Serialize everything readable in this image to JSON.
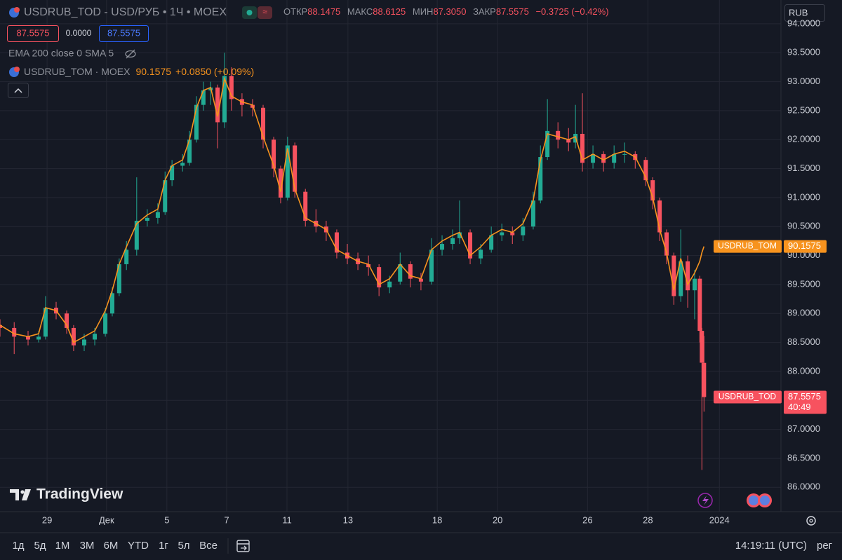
{
  "header": {
    "symbol": "USDRUB_TOD - USD/РУБ • 1Ч • MOEX",
    "open_label": "ОТКР",
    "open": "88.1475",
    "high_label": "МАКС",
    "high": "88.6125",
    "low_label": "МИН",
    "low": "87.3050",
    "close_label": "ЗАКР",
    "close": "87.5575",
    "change": "−0.3725 (−0.42%)",
    "bid": "87.5575",
    "spread": "0.0000",
    "ask": "87.5575",
    "indicators": "EMA 200 close 0 SMA 5",
    "compare_symbol": "USDRUB_TOM · MOEX",
    "compare_price": "90.1575",
    "compare_change": "+0.0850 (+0.09%)",
    "currency": "RUB",
    "countdown": "40:49",
    "logo": "TradingView"
  },
  "chart_data": {
    "type": "candlestick",
    "x": [
      0,
      0.47,
      0.93,
      1.28,
      1.51,
      1.86,
      2.21,
      2.44,
      2.79,
      3.14,
      3.49,
      3.72,
      3.95,
      4.19,
      4.53,
      4.88,
      5.23,
      5.47,
      5.7,
      6.05,
      6.28,
      6.51,
      6.74,
      6.98,
      7.21,
      7.44,
      7.67,
      8.02,
      8.37,
      8.72,
      9.07,
      9.3,
      9.53,
      9.77,
      10.12,
      10.47,
      10.81,
      11.16,
      11.51,
      11.86,
      12.21,
      12.56,
      12.91,
      13.26,
      13.6,
      13.95,
      14.3,
      14.65,
      15.0,
      15.23,
      15.58,
      15.93,
      16.28,
      16.63,
      16.98,
      17.33,
      17.67,
      17.91,
      18.14,
      18.49,
      18.84,
      19.07,
      19.3,
      19.65,
      20.0,
      20.35,
      20.7,
      21.05,
      21.4,
      21.63,
      21.86,
      22.09,
      22.33,
      22.56,
      22.79,
      23.02,
      23.19,
      23.26,
      23.33
    ],
    "series": [
      {
        "name": "USDRUB_TOD",
        "up_color": "#22ab94",
        "down_color": "#f7525f",
        "open": [
          88.8,
          88.75,
          88.6,
          88.55,
          88.6,
          89.1,
          89.0,
          88.75,
          88.45,
          88.55,
          88.65,
          89.0,
          89.35,
          89.85,
          90.1,
          90.6,
          90.65,
          90.75,
          91.3,
          91.55,
          91.6,
          92.0,
          92.6,
          92.85,
          92.9,
          92.3,
          93.1,
          92.7,
          92.6,
          92.55,
          92.0,
          91.5,
          91.0,
          91.9,
          91.1,
          90.6,
          90.5,
          90.4,
          90.05,
          89.95,
          89.85,
          89.8,
          89.45,
          89.55,
          89.85,
          89.6,
          89.55,
          90.1,
          90.2,
          90.3,
          90.4,
          89.95,
          90.1,
          90.35,
          90.4,
          90.35,
          90.5,
          90.95,
          91.7,
          92.15,
          92.0,
          91.95,
          92.1,
          91.6,
          91.75,
          91.6,
          91.75,
          91.75,
          91.65,
          91.3,
          90.95,
          90.4,
          90.0,
          89.3,
          89.9,
          89.4,
          89.6,
          88.7,
          88.1475
        ],
        "high": [
          88.9,
          88.85,
          88.7,
          88.7,
          89.3,
          89.2,
          89.05,
          88.8,
          88.65,
          88.75,
          89.1,
          89.45,
          89.95,
          90.25,
          91.35,
          90.8,
          90.9,
          91.45,
          91.65,
          91.75,
          92.15,
          92.75,
          93.0,
          93.0,
          92.95,
          93.5,
          93.25,
          92.8,
          92.7,
          92.6,
          92.05,
          91.55,
          92.05,
          91.95,
          91.15,
          90.8,
          90.6,
          90.45,
          90.2,
          90.05,
          90.0,
          89.85,
          89.65,
          90.05,
          89.9,
          89.7,
          90.3,
          90.35,
          90.45,
          90.95,
          90.45,
          90.2,
          90.5,
          90.55,
          90.5,
          90.65,
          91.1,
          91.9,
          92.7,
          92.3,
          92.2,
          92.6,
          92.8,
          91.9,
          91.8,
          91.9,
          91.95,
          91.8,
          91.7,
          91.35,
          91.0,
          90.45,
          90.05,
          90.45,
          90.0,
          89.75,
          89.65,
          88.75,
          88.6125
        ],
        "low": [
          88.6,
          88.3,
          88.45,
          88.5,
          88.55,
          88.9,
          88.65,
          88.35,
          88.35,
          88.45,
          88.6,
          88.95,
          89.3,
          89.75,
          90.0,
          90.5,
          90.55,
          90.7,
          91.2,
          91.45,
          91.55,
          91.95,
          92.5,
          92.6,
          91.85,
          92.2,
          92.5,
          92.4,
          92.4,
          91.85,
          91.35,
          90.9,
          90.95,
          91.0,
          90.5,
          90.4,
          90.25,
          89.95,
          89.85,
          89.75,
          89.65,
          89.3,
          89.35,
          89.5,
          89.45,
          89.4,
          89.5,
          90.0,
          90.1,
          90.2,
          89.85,
          89.85,
          90.05,
          90.25,
          90.2,
          90.25,
          90.45,
          90.9,
          91.65,
          91.85,
          91.8,
          91.85,
          91.45,
          91.5,
          91.45,
          91.5,
          91.6,
          91.5,
          91.2,
          90.8,
          90.25,
          89.85,
          89.15,
          89.2,
          89.1,
          88.9,
          88.5,
          86.3,
          87.305
        ],
        "close": [
          88.75,
          88.6,
          88.55,
          88.6,
          89.1,
          89.0,
          88.75,
          88.45,
          88.55,
          88.65,
          89.0,
          89.35,
          89.85,
          90.1,
          90.6,
          90.65,
          90.75,
          91.3,
          91.55,
          91.6,
          92.0,
          92.6,
          92.85,
          92.9,
          92.3,
          93.1,
          92.7,
          92.6,
          92.55,
          92.0,
          91.5,
          91.0,
          91.9,
          91.1,
          90.6,
          90.5,
          90.4,
          90.05,
          89.95,
          89.85,
          89.8,
          89.45,
          89.55,
          89.85,
          89.6,
          89.55,
          90.1,
          90.2,
          90.3,
          90.4,
          89.95,
          90.1,
          90.35,
          90.4,
          90.35,
          90.5,
          90.95,
          91.7,
          92.15,
          92.0,
          91.95,
          92.1,
          91.6,
          91.75,
          91.6,
          91.75,
          91.75,
          91.65,
          91.3,
          90.95,
          90.4,
          90.0,
          89.3,
          89.9,
          89.4,
          89.6,
          88.7,
          88.15,
          87.5575
        ],
        "label_color": "#f7525f"
      },
      {
        "name": "USDRUB_TOM",
        "type": "line",
        "color": "#f7931e",
        "values": [
          88.8,
          88.65,
          88.6,
          88.65,
          89.1,
          89.05,
          88.8,
          88.5,
          88.6,
          88.7,
          89.05,
          89.4,
          89.85,
          90.15,
          90.55,
          90.7,
          90.8,
          91.3,
          91.55,
          91.65,
          92.0,
          92.55,
          92.85,
          92.9,
          92.4,
          93.05,
          92.75,
          92.65,
          92.6,
          92.05,
          91.55,
          91.1,
          91.85,
          91.15,
          90.65,
          90.55,
          90.45,
          90.1,
          90.0,
          89.9,
          89.85,
          89.5,
          89.6,
          89.85,
          89.65,
          89.6,
          90.1,
          90.25,
          90.35,
          90.4,
          90.0,
          90.15,
          90.35,
          90.45,
          90.4,
          90.55,
          90.95,
          91.65,
          92.1,
          92.05,
          92.0,
          92.05,
          91.65,
          91.75,
          91.65,
          91.75,
          91.8,
          91.7,
          91.35,
          91.0,
          90.45,
          90.05,
          89.4,
          89.95,
          89.5,
          89.7,
          89.9,
          90.05,
          90.1575
        ]
      }
    ],
    "xlim": [
      0,
      25.88
    ],
    "xticks": [
      {
        "value": 1.56,
        "label": "29"
      },
      {
        "value": 3.53,
        "label": "Дек"
      },
      {
        "value": 5.53,
        "label": "5"
      },
      {
        "value": 7.51,
        "label": "7"
      },
      {
        "value": 9.51,
        "label": "11"
      },
      {
        "value": 11.53,
        "label": "13"
      },
      {
        "value": 14.49,
        "label": "18"
      },
      {
        "value": 16.49,
        "label": "20"
      },
      {
        "value": 19.47,
        "label": "26"
      },
      {
        "value": 21.47,
        "label": "28"
      },
      {
        "value": 23.84,
        "label": "2024"
      }
    ],
    "ylim": [
      85.58,
      94.41
    ],
    "yticks": [
      {
        "value": 86,
        "label": "86.0000"
      },
      {
        "value": 86.5,
        "label": "86.5000"
      },
      {
        "value": 87,
        "label": "87.0000"
      },
      {
        "value": 87.5,
        "label": "87.5000"
      },
      {
        "value": 88,
        "label": "88.0000"
      },
      {
        "value": 88.5,
        "label": "88.5000"
      },
      {
        "value": 89,
        "label": "89.0000"
      },
      {
        "value": 89.5,
        "label": "89.5000"
      },
      {
        "value": 90,
        "label": "90.0000"
      },
      {
        "value": 90.5,
        "label": "90.5000"
      },
      {
        "value": 91,
        "label": "91.0000"
      },
      {
        "value": 91.5,
        "label": "91.5000"
      },
      {
        "value": 92,
        "label": "92.0000"
      },
      {
        "value": 92.5,
        "label": "92.5000"
      },
      {
        "value": 93,
        "label": "93.0000"
      },
      {
        "value": 93.5,
        "label": "93.5000"
      },
      {
        "value": 94,
        "label": "94.0000"
      }
    ],
    "grid": true
  },
  "toolbar": {
    "ranges": [
      "1д",
      "5д",
      "1М",
      "3М",
      "6М",
      "YTD",
      "1г",
      "5л",
      "Все"
    ],
    "time": "14:19:11 (UTC)",
    "session": "рег"
  }
}
